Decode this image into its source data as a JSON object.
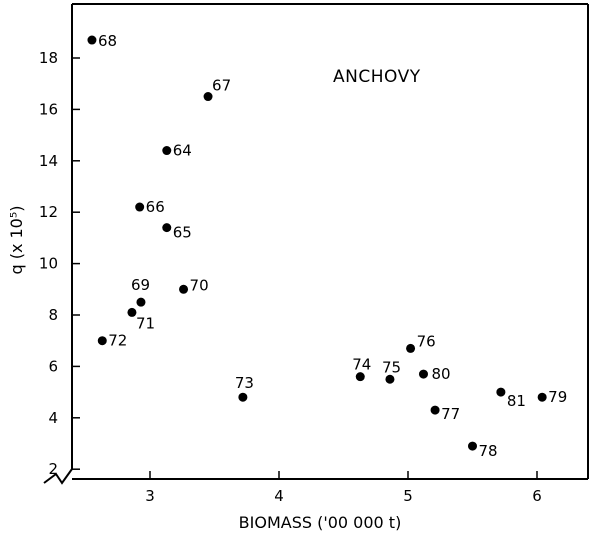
{
  "chart_data": {
    "type": "scatter",
    "title": "ANCHOVY",
    "xlabel": "BIOMASS ('00 000 t)",
    "ylabel": "q (x 10⁵)",
    "xlim": [
      2.5,
      6.4
    ],
    "ylim": [
      1.5,
      19.5
    ],
    "x_ticks": [
      3,
      4,
      5,
      6
    ],
    "y_ticks": [
      2,
      4,
      6,
      8,
      10,
      12,
      14,
      16,
      18
    ],
    "grid": false,
    "points": [
      {
        "label": "68",
        "x": 2.55,
        "y": 18.7
      },
      {
        "label": "67",
        "x": 3.45,
        "y": 16.5
      },
      {
        "label": "64",
        "x": 3.13,
        "y": 14.4
      },
      {
        "label": "66",
        "x": 2.92,
        "y": 12.2
      },
      {
        "label": "65",
        "x": 3.13,
        "y": 11.4
      },
      {
        "label": "70",
        "x": 3.26,
        "y": 9.0
      },
      {
        "label": "69",
        "x": 2.93,
        "y": 8.5
      },
      {
        "label": "71",
        "x": 2.86,
        "y": 8.1
      },
      {
        "label": "72",
        "x": 2.63,
        "y": 7.0
      },
      {
        "label": "73",
        "x": 3.72,
        "y": 4.8
      },
      {
        "label": "74",
        "x": 4.63,
        "y": 5.6
      },
      {
        "label": "75",
        "x": 4.86,
        "y": 5.5
      },
      {
        "label": "76",
        "x": 5.02,
        "y": 6.7
      },
      {
        "label": "80",
        "x": 5.12,
        "y": 5.7
      },
      {
        "label": "77",
        "x": 5.21,
        "y": 4.3
      },
      {
        "label": "78",
        "x": 5.5,
        "y": 2.9
      },
      {
        "label": "81",
        "x": 5.72,
        "y": 5.0
      },
      {
        "label": "79",
        "x": 6.04,
        "y": 4.8
      }
    ]
  }
}
